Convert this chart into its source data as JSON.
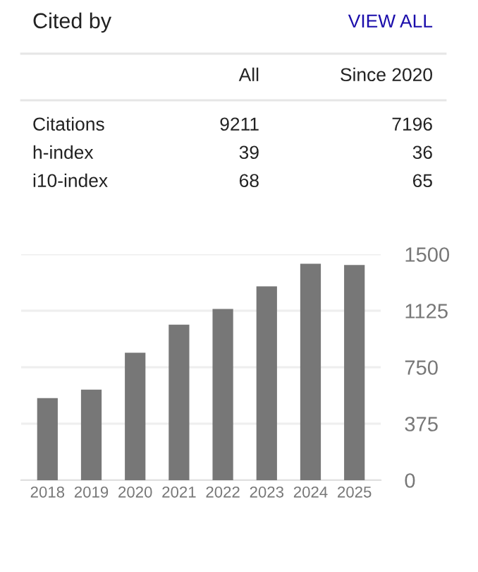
{
  "chart_data": [
    {
      "type": "other",
      "title": "Cited by",
      "annotations": [
        "VIEW ALL"
      ],
      "categories": [
        "Citations",
        "h-index",
        "i10-index"
      ],
      "data_labels": true,
      "series": [
        {
          "name": "All",
          "values": [
            9211,
            39,
            68
          ]
        },
        {
          "name": "Since 2020",
          "values": [
            7196,
            36,
            65
          ]
        }
      ]
    },
    {
      "type": "bar",
      "categories": [
        "2018",
        "2019",
        "2020",
        "2021",
        "2022",
        "2023",
        "2024",
        "2025"
      ],
      "color": "#777777",
      "values": [
        545,
        601,
        846,
        1033,
        1137,
        1287,
        1437,
        1428
      ],
      "ylim": [
        0,
        1500
      ],
      "yticks": [
        0,
        375,
        750,
        1125,
        1500
      ],
      "grid": "y",
      "legend": false
    }
  ]
}
